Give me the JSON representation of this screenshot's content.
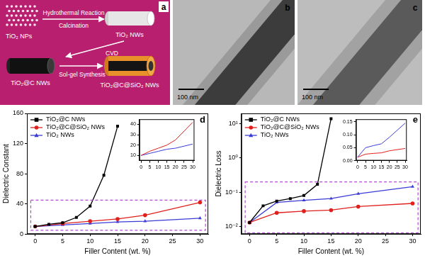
{
  "panels": {
    "a": {
      "label": "a",
      "nodes": [
        {
          "label": "TiO₂ NPs"
        },
        {
          "label": "TiO₂ NWs"
        },
        {
          "label": "TiO₂@C NWs"
        },
        {
          "label": "TiO₂@C@SiO₂ NWs"
        }
      ],
      "arrows": [
        [
          "Hydrothermal Reaction",
          "Calcination"
        ],
        [
          "CVD"
        ],
        [
          "Sol-gel Synthesis"
        ]
      ]
    },
    "b": {
      "label": "b",
      "scale_bar": "100 nm"
    },
    "c": {
      "label": "c",
      "scale_bar": "100 nm"
    }
  },
  "chart_data": [
    {
      "type": "line",
      "title": "d",
      "x_label": "Filler Content (wt. %)",
      "y_label": "Dielectric Constant",
      "xlim": [
        -1.5,
        31.5
      ],
      "xticks": [
        0,
        5,
        10,
        15,
        20,
        25,
        30
      ],
      "ylim": [
        0,
        160
      ],
      "yticks": [
        0,
        40,
        80,
        120,
        160
      ],
      "grid": false,
      "legend": "upper left",
      "highlight": {
        "xlim": [
          -0.8,
          31
        ],
        "ylim": [
          5,
          45
        ]
      },
      "series": [
        {
          "name": "TiO₂@C NWs",
          "color": "#000000",
          "marker": "square",
          "x": [
            0,
            2.5,
            5,
            7.5,
            10,
            12.5,
            15
          ],
          "values": [
            10,
            13,
            15,
            22,
            37,
            78,
            143
          ]
        },
        {
          "name": "TiO₂@C@SiO₂ NWs",
          "color": "#e0201c",
          "marker": "circle",
          "x": [
            0,
            5,
            10,
            15,
            20,
            30
          ],
          "values": [
            10,
            14,
            17,
            20,
            25,
            42
          ]
        },
        {
          "name": "TiO₂ NWs",
          "color": "#3b3bd6",
          "marker": "triangle",
          "x": [
            0,
            5,
            10,
            15,
            20,
            30
          ],
          "values": [
            10,
            12,
            14,
            16,
            17,
            21
          ]
        }
      ]
    },
    {
      "type": "line",
      "xlim": [
        -1,
        31
      ],
      "xticks": [
        0,
        5,
        10,
        15,
        20,
        25,
        30
      ],
      "ylim": [
        5,
        45
      ],
      "yticks": [
        10,
        20,
        30,
        40
      ],
      "grid": false,
      "series": [
        {
          "name": "TiO₂@C@SiO₂ NWs",
          "color": "#e0201c",
          "x": [
            0,
            5,
            10,
            15,
            20,
            30
          ],
          "values": [
            10,
            14,
            17,
            20,
            25,
            42
          ]
        },
        {
          "name": "TiO₂ NWs",
          "color": "#3b3bd6",
          "x": [
            0,
            5,
            10,
            15,
            20,
            30
          ],
          "values": [
            10,
            12,
            14,
            16,
            17,
            21
          ]
        }
      ]
    },
    {
      "type": "line",
      "title": "e",
      "x_label": "Filler Content (wt. %)",
      "y_label": "Dielectric Loss",
      "log": "y",
      "xlim": [
        -1.5,
        31.5
      ],
      "xticks": [
        0,
        5,
        10,
        15,
        20,
        25,
        30
      ],
      "ylim": [
        0.006,
        20
      ],
      "yticks": [
        {
          "value": 0.01,
          "label": "10⁻²"
        },
        {
          "value": 0.1,
          "label": "10⁻¹"
        },
        {
          "value": 1,
          "label": "10⁰"
        },
        {
          "value": 10,
          "label": "10¹"
        }
      ],
      "grid": false,
      "legend": "upper left",
      "highlight": {
        "xlim": [
          -0.8,
          31
        ],
        "ylim": [
          0.0065,
          0.2
        ]
      },
      "series": [
        {
          "name": "TiO₂@C NWs",
          "color": "#000000",
          "marker": "square",
          "x": [
            0,
            2.5,
            5,
            7.5,
            10,
            12.5,
            15
          ],
          "values": [
            0.013,
            0.04,
            0.055,
            0.065,
            0.08,
            0.17,
            14
          ]
        },
        {
          "name": "TiO₂@C@SiO₂ NWs",
          "color": "#e0201c",
          "marker": "circle",
          "x": [
            0,
            5,
            10,
            15,
            20,
            30
          ],
          "values": [
            0.013,
            0.025,
            0.028,
            0.03,
            0.038,
            0.047
          ]
        },
        {
          "name": "TiO₂ NWs",
          "color": "#3b3bd6",
          "marker": "triangle",
          "x": [
            0,
            5,
            10,
            15,
            20,
            30
          ],
          "values": [
            0.013,
            0.05,
            0.058,
            0.065,
            0.09,
            0.145
          ]
        }
      ]
    },
    {
      "type": "line",
      "xlim": [
        -1,
        31
      ],
      "xticks": [
        0,
        5,
        10,
        15,
        20,
        25,
        30
      ],
      "ylim": [
        0,
        0.16
      ],
      "yticks": [
        {
          "value": 0,
          "label": "0.00"
        },
        {
          "value": 0.05,
          "label": "0.05"
        },
        {
          "value": 0.1,
          "label": "0.10"
        },
        {
          "value": 0.15,
          "label": "0.15"
        }
      ],
      "grid": false,
      "series": [
        {
          "name": "TiO₂@C@SiO₂ NWs",
          "color": "#e0201c",
          "x": [
            0,
            5,
            10,
            15,
            20,
            30
          ],
          "values": [
            0.013,
            0.025,
            0.028,
            0.03,
            0.038,
            0.047
          ]
        },
        {
          "name": "TiO₂ NWs",
          "color": "#3b3bd6",
          "x": [
            0,
            5,
            10,
            15,
            20,
            30
          ],
          "values": [
            0.013,
            0.05,
            0.058,
            0.065,
            0.09,
            0.145
          ]
        }
      ]
    }
  ]
}
